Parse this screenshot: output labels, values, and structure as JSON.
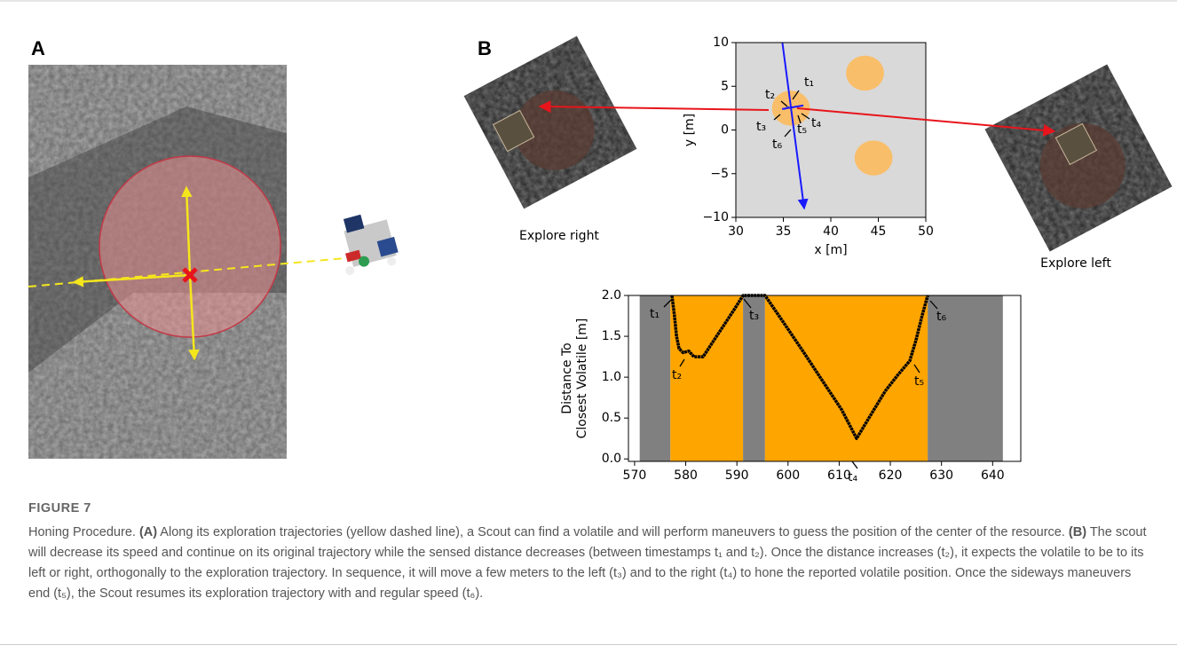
{
  "panel_labels": [
    "A",
    "B"
  ],
  "image_labels": [
    "Explore right",
    "Explore left"
  ],
  "chart_data": [
    {
      "type": "map",
      "xlabel": "x [m]",
      "ylabel": "y [m]",
      "xlim": [
        30,
        50
      ],
      "ylim": [
        -10,
        10
      ],
      "xticks": [
        30,
        35,
        40,
        45,
        50
      ],
      "yticks": [
        {
          "value": -10,
          "label": "−10"
        },
        {
          "value": -5,
          "label": "−5"
        },
        0,
        5,
        10
      ],
      "background": "#d9d9d9",
      "circles": {
        "color": "#f9be6a",
        "radius": 2,
        "x": [
          35.8,
          43.6,
          44.5
        ],
        "y": [
          2.5,
          6.5,
          -3.2
        ]
      },
      "path": {
        "color": "#1a1aff",
        "x": [
          34.9,
          37.2
        ],
        "y": [
          10,
          -9
        ]
      },
      "annotations": [
        "t₁",
        "t₂",
        "t₃",
        "t₄",
        "t₅",
        "t₆"
      ]
    },
    {
      "type": "line",
      "ylabel": [
        "Distance To",
        "Closest Volatile [m]"
      ],
      "xlim": [
        568.8,
        645.5
      ],
      "ylim": [
        -0.03,
        2.0
      ],
      "xticks": [
        570,
        580,
        590,
        600,
        610,
        620,
        630,
        640
      ],
      "yticks": [
        {
          "value": 0,
          "label": "0.0"
        },
        {
          "value": 0.5,
          "label": "0.5"
        },
        {
          "value": 1,
          "label": "1.0"
        },
        {
          "value": 1.5,
          "label": "1.5"
        },
        {
          "value": 2,
          "label": "2.0"
        }
      ],
      "spans": {
        "x0": [
          571,
          577,
          591.2,
          595.5,
          627.3
        ],
        "x1": [
          577,
          591.2,
          595.5,
          627.3,
          642
        ],
        "colors": [
          "#808080",
          "#ffa500",
          "#808080",
          "#ffa500",
          "#808080"
        ]
      },
      "series": [
        {
          "color": "#000000",
          "x": [
            577.3,
            577.8,
            578.2,
            578.7,
            579.5,
            580.6,
            581.6,
            583.4,
            585.5,
            587.5,
            589.5,
            591.2,
            595.5,
            599,
            603,
            607,
            610.5,
            613.4,
            616,
            619,
            621.5,
            623.8,
            625,
            626.2,
            627.3
          ],
          "values": [
            2.0,
            1.75,
            1.5,
            1.35,
            1.3,
            1.32,
            1.25,
            1.25,
            1.45,
            1.64,
            1.83,
            2.0,
            2.0,
            1.68,
            1.31,
            0.93,
            0.6,
            0.25,
            0.52,
            0.83,
            1.03,
            1.2,
            1.45,
            1.75,
            2.0
          ]
        }
      ],
      "annotations": [
        "t₁",
        "t₂",
        "t₃",
        "t₄",
        "t₅",
        "t₆"
      ]
    }
  ],
  "caption": {
    "label": "FIGURE 7",
    "parts": [
      "Honing Procedure. ",
      "(A)",
      " Along its exploration trajectories (yellow dashed line), a Scout can find a volatile and will perform maneuvers to guess the position of the center of the resource. ",
      "(B)",
      " The scout will decrease its speed and continue on its original trajectory while the sensed distance decreases (between timestamps t₁ and t₂). Once the distance increases (t₂), it expects the volatile to be to its left or right, orthogonally to the exploration trajectory. In sequence, it will move a few meters to the left (t₃) and to the right (t₄) to hone the reported volatile position. Once the sideways maneuvers end (t₅), the Scout resumes its exploration trajectory with and regular speed (t₆)."
    ]
  }
}
